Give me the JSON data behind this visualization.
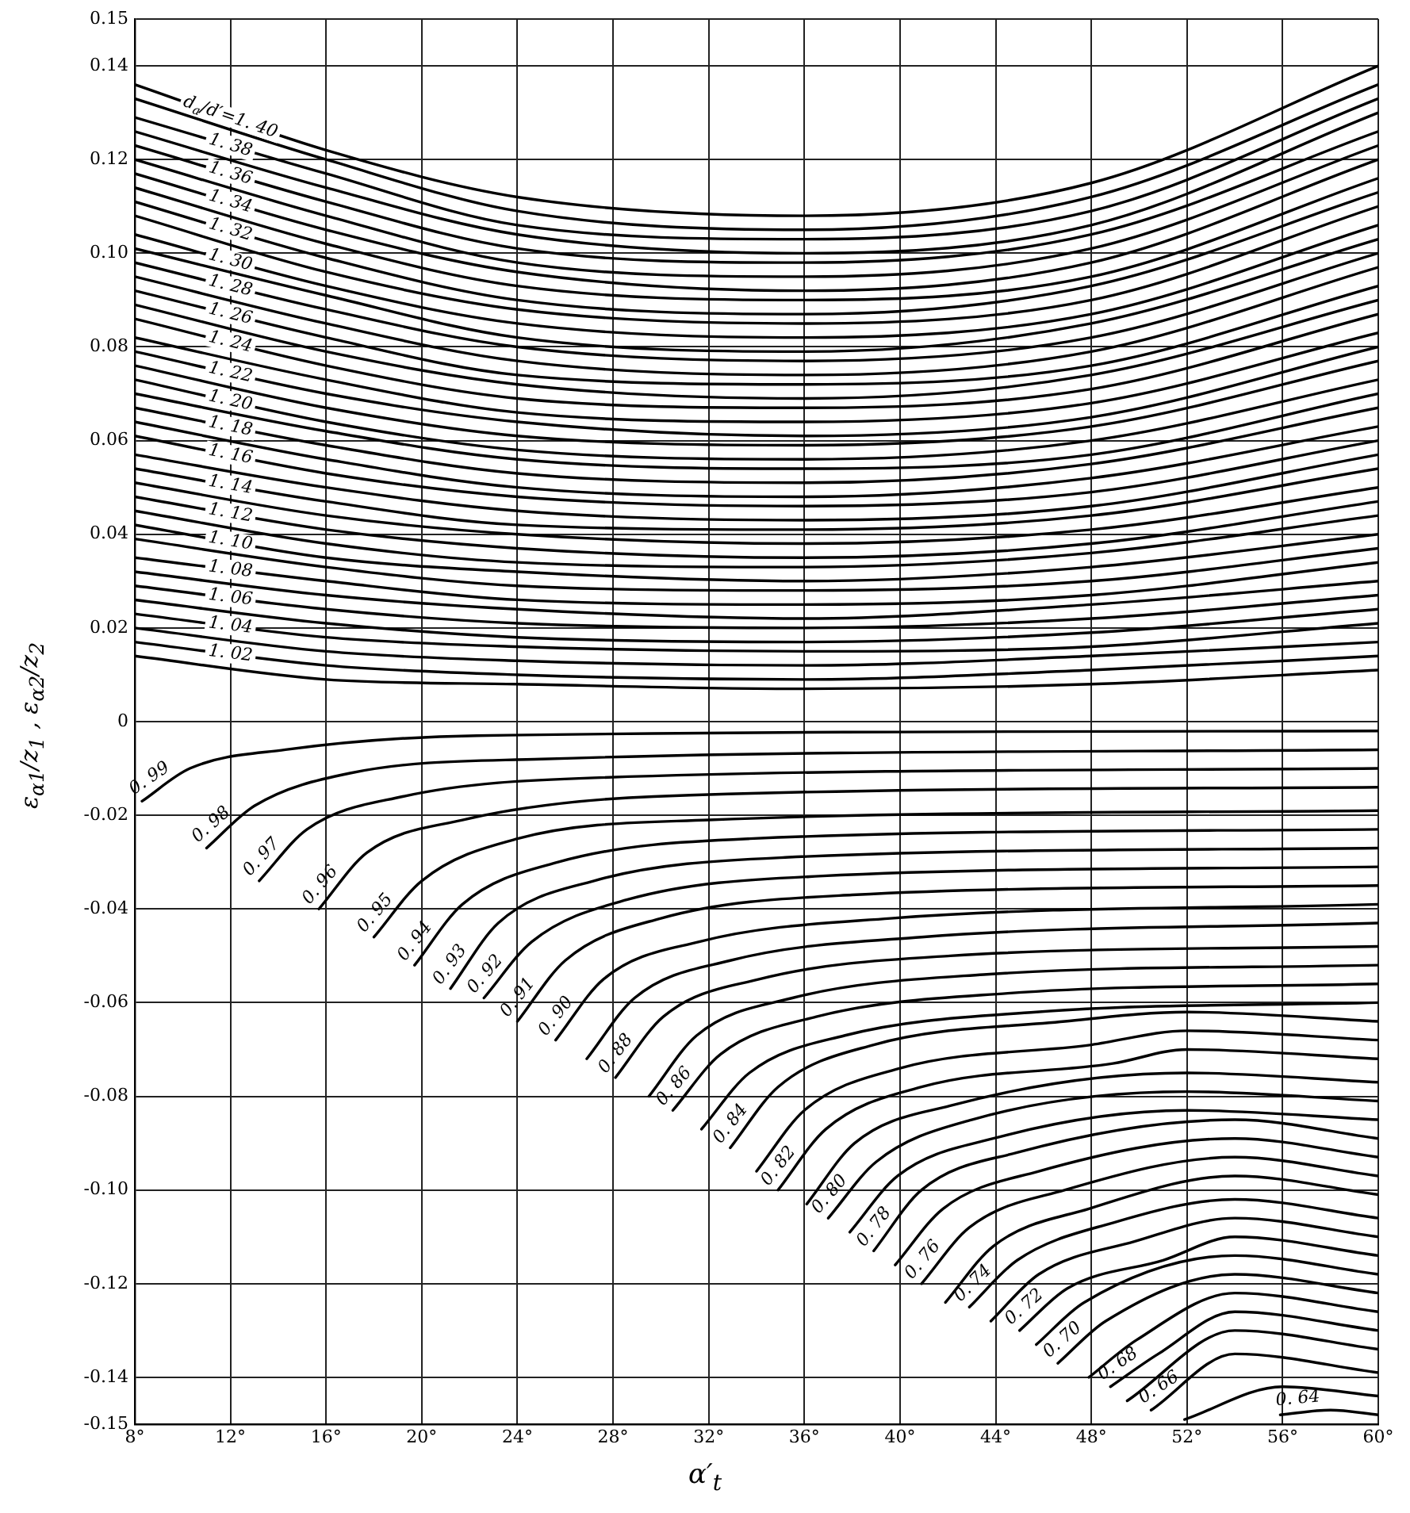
{
  "chart_data": {
    "type": "line",
    "xlabel": "α′$_{t}$",
    "ylabel": "ε$_{α1}$/z$_{1}$ , ε$_{α2}$/z$_{2}$",
    "xlim": [
      8,
      60
    ],
    "ylim": [
      -0.15,
      0.15
    ],
    "xticks": [
      {
        "value": 8,
        "label": "8°"
      },
      {
        "value": 12,
        "label": "12°"
      },
      {
        "value": 16,
        "label": "16°"
      },
      {
        "value": 20,
        "label": "20°"
      },
      {
        "value": 24,
        "label": "24°"
      },
      {
        "value": 28,
        "label": "28°"
      },
      {
        "value": 32,
        "label": "32°"
      },
      {
        "value": 36,
        "label": "36°"
      },
      {
        "value": 40,
        "label": "40°"
      },
      {
        "value": 44,
        "label": "44°"
      },
      {
        "value": 48,
        "label": "48°"
      },
      {
        "value": 52,
        "label": "52°"
      },
      {
        "value": 56,
        "label": "56°"
      },
      {
        "value": 60,
        "label": "60°"
      }
    ],
    "yticks": [
      {
        "value": 0.15,
        "label": "0.15"
      },
      {
        "value": 0.14,
        "label": "0.14"
      },
      {
        "value": 0.12,
        "label": "0.12"
      },
      {
        "value": 0.1,
        "label": "0.10"
      },
      {
        "value": 0.08,
        "label": "0.08"
      },
      {
        "value": 0.06,
        "label": "0.06"
      },
      {
        "value": 0.04,
        "label": "0.04"
      },
      {
        "value": 0.02,
        "label": "0.02"
      },
      0,
      {
        "value": -0.02,
        "label": "-0.02"
      },
      {
        "value": -0.04,
        "label": "-0.04"
      },
      {
        "value": -0.06,
        "label": "-0.06"
      },
      {
        "value": -0.08,
        "label": "-0.08"
      },
      {
        "value": -0.1,
        "label": "-0.10"
      },
      {
        "value": -0.12,
        "label": "-0.12"
      },
      {
        "value": -0.14,
        "label": "-0.14"
      },
      {
        "value": -0.15,
        "label": "-0.15"
      }
    ],
    "grid": true,
    "legend": false,
    "marker": "none",
    "line_style": "solid",
    "series": [
      {
        "name": "d$_{a}$/d′=1. 40",
        "color": "#000000",
        "x": [
          8,
          16,
          24,
          36,
          48,
          60
        ],
        "values": [
          0.136,
          0.122,
          0.112,
          0.108,
          0.115,
          0.14
        ]
      },
      {
        "color": "#000000",
        "x": [
          8,
          16,
          24,
          36,
          48,
          60
        ],
        "values": [
          0.133,
          0.12,
          0.109,
          0.105,
          0.112,
          0.136
        ]
      },
      {
        "name": "1. 38",
        "color": "#000000",
        "x": [
          8,
          16,
          24,
          36,
          48,
          60
        ],
        "values": [
          0.129,
          0.117,
          0.106,
          0.103,
          0.109,
          0.133
        ]
      },
      {
        "color": "#000000",
        "x": [
          8,
          16,
          24,
          36,
          48,
          60
        ],
        "values": [
          0.126,
          0.114,
          0.104,
          0.1,
          0.106,
          0.13
        ]
      },
      {
        "name": "1. 36",
        "color": "#000000",
        "x": [
          8,
          16,
          24,
          36,
          48,
          60
        ],
        "values": [
          0.123,
          0.111,
          0.101,
          0.098,
          0.104,
          0.126
        ]
      },
      {
        "color": "#000000",
        "x": [
          8,
          16,
          24,
          36,
          48,
          60
        ],
        "values": [
          0.12,
          0.108,
          0.098,
          0.095,
          0.101,
          0.123
        ]
      },
      {
        "name": "1. 34",
        "color": "#000000",
        "x": [
          8,
          16,
          24,
          36,
          48,
          60
        ],
        "values": [
          0.117,
          0.105,
          0.096,
          0.092,
          0.098,
          0.12
        ]
      },
      {
        "color": "#000000",
        "x": [
          8,
          16,
          24,
          36,
          48,
          60
        ],
        "values": [
          0.114,
          0.102,
          0.093,
          0.09,
          0.095,
          0.116
        ]
      },
      {
        "name": "1. 32",
        "color": "#000000",
        "x": [
          8,
          16,
          24,
          36,
          48,
          60
        ],
        "values": [
          0.111,
          0.099,
          0.09,
          0.087,
          0.093,
          0.113
        ]
      },
      {
        "color": "#000000",
        "x": [
          8,
          16,
          24,
          36,
          48,
          60
        ],
        "values": [
          0.108,
          0.096,
          0.088,
          0.085,
          0.09,
          0.11
        ]
      },
      {
        "name": "1. 30",
        "color": "#000000",
        "x": [
          8,
          16,
          24,
          36,
          48,
          60
        ],
        "values": [
          0.104,
          0.093,
          0.085,
          0.082,
          0.087,
          0.106
        ]
      },
      {
        "color": "#000000",
        "x": [
          8,
          16,
          24,
          36,
          48,
          60
        ],
        "values": [
          0.101,
          0.091,
          0.082,
          0.079,
          0.085,
          0.103
        ]
      },
      {
        "name": "1. 28",
        "color": "#000000",
        "x": [
          8,
          16,
          24,
          36,
          48,
          60
        ],
        "values": [
          0.098,
          0.088,
          0.08,
          0.077,
          0.082,
          0.1
        ]
      },
      {
        "color": "#000000",
        "x": [
          8,
          16,
          24,
          36,
          48,
          60
        ],
        "values": [
          0.095,
          0.085,
          0.077,
          0.074,
          0.079,
          0.097
        ]
      },
      {
        "name": "1. 26",
        "color": "#000000",
        "x": [
          8,
          16,
          24,
          36,
          48,
          60
        ],
        "values": [
          0.092,
          0.082,
          0.074,
          0.072,
          0.076,
          0.093
        ]
      },
      {
        "color": "#000000",
        "x": [
          8,
          16,
          24,
          36,
          48,
          60
        ],
        "values": [
          0.089,
          0.079,
          0.072,
          0.069,
          0.074,
          0.09
        ]
      },
      {
        "name": "1. 24",
        "color": "#000000",
        "x": [
          8,
          16,
          24,
          36,
          48,
          60
        ],
        "values": [
          0.086,
          0.076,
          0.069,
          0.067,
          0.071,
          0.087
        ]
      },
      {
        "color": "#000000",
        "x": [
          8,
          16,
          24,
          36,
          48,
          60
        ],
        "values": [
          0.082,
          0.073,
          0.066,
          0.064,
          0.068,
          0.083
        ]
      },
      {
        "name": "1. 22",
        "color": "#000000",
        "x": [
          8,
          16,
          24,
          36,
          48,
          60
        ],
        "values": [
          0.079,
          0.07,
          0.064,
          0.061,
          0.065,
          0.08
        ]
      },
      {
        "color": "#000000",
        "x": [
          8,
          16,
          24,
          36,
          48,
          60
        ],
        "values": [
          0.076,
          0.067,
          0.061,
          0.059,
          0.063,
          0.077
        ]
      },
      {
        "name": "1. 20",
        "color": "#000000",
        "x": [
          8,
          16,
          24,
          36,
          48,
          60
        ],
        "values": [
          0.073,
          0.064,
          0.058,
          0.056,
          0.06,
          0.073
        ]
      },
      {
        "color": "#000000",
        "x": [
          8,
          16,
          24,
          36,
          48,
          60
        ],
        "values": [
          0.07,
          0.062,
          0.056,
          0.054,
          0.057,
          0.07
        ]
      },
      {
        "name": "1. 18",
        "color": "#000000",
        "x": [
          8,
          16,
          24,
          36,
          48,
          60
        ],
        "values": [
          0.067,
          0.059,
          0.053,
          0.051,
          0.055,
          0.067
        ]
      },
      {
        "color": "#000000",
        "x": [
          8,
          16,
          24,
          36,
          48,
          60
        ],
        "values": [
          0.064,
          0.056,
          0.05,
          0.048,
          0.052,
          0.063
        ]
      },
      {
        "name": "1. 16",
        "color": "#000000",
        "x": [
          8,
          16,
          24,
          36,
          48,
          60
        ],
        "values": [
          0.061,
          0.053,
          0.048,
          0.046,
          0.049,
          0.06
        ]
      },
      {
        "color": "#000000",
        "x": [
          8,
          16,
          24,
          36,
          48,
          60
        ],
        "values": [
          0.057,
          0.05,
          0.045,
          0.043,
          0.046,
          0.057
        ]
      },
      {
        "name": "1. 14",
        "color": "#000000",
        "x": [
          8,
          16,
          24,
          36,
          48,
          60
        ],
        "values": [
          0.054,
          0.047,
          0.042,
          0.041,
          0.044,
          0.054
        ]
      },
      {
        "color": "#000000",
        "x": [
          8,
          16,
          24,
          36,
          48,
          60
        ],
        "values": [
          0.051,
          0.044,
          0.04,
          0.038,
          0.041,
          0.05
        ]
      },
      {
        "name": "1. 12",
        "color": "#000000",
        "x": [
          8,
          16,
          24,
          36,
          48,
          60
        ],
        "values": [
          0.048,
          0.041,
          0.037,
          0.035,
          0.038,
          0.047
        ]
      },
      {
        "color": "#000000",
        "x": [
          8,
          16,
          24,
          36,
          48,
          60
        ],
        "values": [
          0.045,
          0.038,
          0.034,
          0.033,
          0.036,
          0.044
        ]
      },
      {
        "name": "1. 10",
        "color": "#000000",
        "x": [
          8,
          16,
          24,
          36,
          48,
          60
        ],
        "values": [
          0.042,
          0.035,
          0.032,
          0.03,
          0.033,
          0.04
        ]
      },
      {
        "color": "#000000",
        "x": [
          8,
          16,
          24,
          36,
          48,
          60
        ],
        "values": [
          0.039,
          0.033,
          0.029,
          0.028,
          0.03,
          0.037
        ]
      },
      {
        "name": "1. 08",
        "color": "#000000",
        "x": [
          8,
          16,
          24,
          36,
          48,
          60
        ],
        "values": [
          0.035,
          0.03,
          0.026,
          0.025,
          0.027,
          0.034
        ]
      },
      {
        "color": "#000000",
        "x": [
          8,
          16,
          24,
          36,
          48,
          60
        ],
        "values": [
          0.032,
          0.027,
          0.024,
          0.022,
          0.025,
          0.03
        ]
      },
      {
        "name": "1. 06",
        "color": "#000000",
        "x": [
          8,
          16,
          24,
          36,
          48,
          60
        ],
        "values": [
          0.029,
          0.024,
          0.021,
          0.02,
          0.022,
          0.027
        ]
      },
      {
        "color": "#000000",
        "x": [
          8,
          16,
          24,
          36,
          48,
          60
        ],
        "values": [
          0.026,
          0.021,
          0.018,
          0.017,
          0.019,
          0.024
        ]
      },
      {
        "name": "1. 04",
        "color": "#000000",
        "x": [
          8,
          16,
          24,
          36,
          48,
          60
        ],
        "values": [
          0.023,
          0.018,
          0.016,
          0.015,
          0.016,
          0.021
        ]
      },
      {
        "color": "#000000",
        "x": [
          8,
          16,
          24,
          36,
          48,
          60
        ],
        "values": [
          0.02,
          0.015,
          0.013,
          0.012,
          0.014,
          0.017
        ]
      },
      {
        "name": "1. 02",
        "color": "#000000",
        "x": [
          8,
          16,
          24,
          36,
          48,
          60
        ],
        "values": [
          0.017,
          0.012,
          0.01,
          0.009,
          0.011,
          0.014
        ]
      },
      {
        "color": "#000000",
        "x": [
          8,
          16,
          24,
          36,
          48,
          60
        ],
        "values": [
          0.014,
          0.009,
          0.008,
          0.007,
          0.008,
          0.011
        ]
      },
      {
        "name": "0. 99",
        "color": "#000000",
        "x": [
          8.3,
          10.3,
          14.3,
          22.3,
          60
        ],
        "values": [
          -0.017,
          -0.01,
          -0.006,
          -0.003,
          -0.002
        ]
      },
      {
        "name": "0. 98",
        "color": "#000000",
        "x": [
          11,
          13,
          17,
          25,
          60
        ],
        "values": [
          -0.027,
          -0.018,
          -0.011,
          -0.008,
          -0.006
        ]
      },
      {
        "name": "0. 97",
        "color": "#000000",
        "x": [
          13.2,
          15.2,
          19.2,
          27.2,
          60
        ],
        "values": [
          -0.034,
          -0.023,
          -0.016,
          -0.012,
          -0.01
        ]
      },
      {
        "name": "0. 96",
        "color": "#000000",
        "x": [
          15.7,
          17.7,
          21.7,
          29.7,
          60
        ],
        "values": [
          -0.04,
          -0.028,
          -0.021,
          -0.016,
          -0.014
        ]
      },
      {
        "name": "0. 95",
        "color": "#000000",
        "x": [
          18,
          20,
          24,
          32,
          60
        ],
        "values": [
          -0.046,
          -0.034,
          -0.025,
          -0.021,
          -0.019
        ]
      },
      {
        "name": "0. 94",
        "color": "#000000",
        "x": [
          19.7,
          21.7,
          25.7,
          33.7,
          60
        ],
        "values": [
          -0.052,
          -0.039,
          -0.03,
          -0.025,
          -0.023
        ]
      },
      {
        "name": "0. 93",
        "color": "#000000",
        "x": [
          21.2,
          23.2,
          27.2,
          35.2,
          60
        ],
        "values": [
          -0.057,
          -0.043,
          -0.034,
          -0.029,
          -0.027
        ]
      },
      {
        "name": "0. 92",
        "color": "#000000",
        "x": [
          22.6,
          24.6,
          28.6,
          36.6,
          60
        ],
        "values": [
          -0.059,
          -0.047,
          -0.038,
          -0.033,
          -0.031
        ]
      },
      {
        "name": "0. 91",
        "color": "#000000",
        "x": [
          24,
          26,
          30,
          38,
          60
        ],
        "values": [
          -0.064,
          -0.051,
          -0.042,
          -0.037,
          -0.035
        ]
      },
      {
        "name": "0. 90",
        "color": "#000000",
        "x": [
          25.6,
          27.6,
          31.6,
          39.6,
          60
        ],
        "values": [
          -0.068,
          -0.055,
          -0.047,
          -0.042,
          -0.039
        ]
      },
      {
        "color": "#000000",
        "x": [
          26.9,
          28.9,
          32.9,
          40.9,
          60
        ],
        "values": [
          -0.072,
          -0.059,
          -0.051,
          -0.046,
          -0.043
        ]
      },
      {
        "name": "0. 88",
        "color": "#000000",
        "x": [
          28.1,
          30.1,
          34.1,
          42.1,
          60
        ],
        "values": [
          -0.076,
          -0.063,
          -0.055,
          -0.05,
          -0.048
        ]
      },
      {
        "color": "#000000",
        "x": [
          29.5,
          31.5,
          35.5,
          43.5,
          60
        ],
        "values": [
          -0.08,
          -0.067,
          -0.059,
          -0.054,
          -0.052
        ]
      },
      {
        "name": "0. 86",
        "color": "#000000",
        "x": [
          30.5,
          32.5,
          36.5,
          44.5,
          60
        ],
        "values": [
          -0.083,
          -0.071,
          -0.063,
          -0.058,
          -0.056
        ]
      },
      {
        "color": "#000000",
        "x": [
          31.7,
          33.7,
          37.7,
          45.7,
          60
        ],
        "values": [
          -0.087,
          -0.075,
          -0.067,
          -0.062,
          -0.06
        ]
      },
      {
        "name": "0. 84",
        "color": "#000000",
        "x": [
          32.9,
          34.9,
          38.9,
          46.9,
          52,
          60
        ],
        "values": [
          -0.091,
          -0.078,
          -0.069,
          -0.064,
          -0.062,
          -0.064
        ]
      },
      {
        "color": "#000000",
        "x": [
          34,
          36,
          40,
          48,
          52,
          60
        ],
        "values": [
          -0.096,
          -0.083,
          -0.074,
          -0.069,
          -0.066,
          -0.068
        ]
      },
      {
        "name": "0. 82",
        "color": "#000000",
        "x": [
          34.9,
          36.9,
          40.9,
          48.9,
          52,
          60
        ],
        "values": [
          -0.1,
          -0.087,
          -0.078,
          -0.073,
          -0.07,
          -0.072
        ]
      },
      {
        "color": "#000000",
        "x": [
          36.1,
          38.1,
          42.1,
          52,
          60
        ],
        "values": [
          -0.103,
          -0.09,
          -0.082,
          -0.075,
          -0.077
        ]
      },
      {
        "name": "0. 80",
        "color": "#000000",
        "x": [
          37,
          39,
          43,
          52,
          60
        ],
        "values": [
          -0.106,
          -0.094,
          -0.085,
          -0.079,
          -0.081
        ]
      },
      {
        "color": "#000000",
        "x": [
          37.9,
          39.9,
          43.9,
          52,
          60
        ],
        "values": [
          -0.109,
          -0.097,
          -0.089,
          -0.083,
          -0.085
        ]
      },
      {
        "name": "0. 78",
        "color": "#000000",
        "x": [
          38.9,
          40.9,
          44.9,
          54,
          60
        ],
        "values": [
          -0.113,
          -0.1,
          -0.092,
          -0.085,
          -0.089
        ]
      },
      {
        "color": "#000000",
        "x": [
          39.8,
          41.8,
          45.8,
          54,
          60
        ],
        "values": [
          -0.116,
          -0.104,
          -0.096,
          -0.089,
          -0.093
        ]
      },
      {
        "name": "0. 76",
        "color": "#000000",
        "x": [
          40.9,
          42.9,
          46.9,
          54,
          60
        ],
        "values": [
          -0.12,
          -0.108,
          -0.1,
          -0.093,
          -0.097
        ]
      },
      {
        "color": "#000000",
        "x": [
          41.9,
          43.9,
          47.9,
          54,
          60
        ],
        "values": [
          -0.124,
          -0.112,
          -0.104,
          -0.097,
          -0.101
        ]
      },
      {
        "name": "0. 74",
        "color": "#000000",
        "x": [
          42.9,
          44.9,
          48.9,
          54,
          60
        ],
        "values": [
          -0.125,
          -0.115,
          -0.107,
          -0.102,
          -0.106
        ]
      },
      {
        "color": "#000000",
        "x": [
          43.8,
          45.8,
          49.8,
          54,
          60
        ],
        "values": [
          -0.128,
          -0.118,
          -0.111,
          -0.106,
          -0.11
        ]
      },
      {
        "name": "0. 72",
        "color": "#000000",
        "x": [
          45,
          47,
          51,
          54,
          60
        ],
        "values": [
          -0.13,
          -0.121,
          -0.115,
          -0.11,
          -0.114
        ]
      },
      {
        "color": "#000000",
        "x": [
          45.7,
          47.7,
          54,
          60
        ],
        "values": [
          -0.133,
          -0.124,
          -0.114,
          -0.118
        ]
      },
      {
        "name": "0. 70",
        "color": "#000000",
        "x": [
          46.6,
          48.6,
          54,
          60
        ],
        "values": [
          -0.137,
          -0.128,
          -0.118,
          -0.122
        ]
      },
      {
        "color": "#000000",
        "x": [
          47.9,
          49.9,
          54,
          60
        ],
        "values": [
          -0.14,
          -0.132,
          -0.122,
          -0.126
        ]
      },
      {
        "name": "0. 68",
        "color": "#000000",
        "x": [
          48.8,
          50.8,
          54,
          60
        ],
        "values": [
          -0.142,
          -0.135,
          -0.126,
          -0.13
        ]
      },
      {
        "color": "#000000",
        "x": [
          49.5,
          54,
          60
        ],
        "values": [
          -0.145,
          -0.13,
          -0.134
        ]
      },
      {
        "name": "0. 66",
        "color": "#000000",
        "x": [
          50.5,
          54,
          60
        ],
        "values": [
          -0.147,
          -0.135,
          -0.139
        ]
      },
      {
        "color": "#000000",
        "x": [
          51.9,
          56,
          60
        ],
        "values": [
          -0.149,
          -0.142,
          -0.144
        ]
      },
      {
        "name": "0. 64",
        "color": "#000000",
        "x": [
          55.9,
          58,
          60
        ],
        "values": [
          -0.148,
          -0.147,
          -0.148
        ]
      }
    ]
  }
}
